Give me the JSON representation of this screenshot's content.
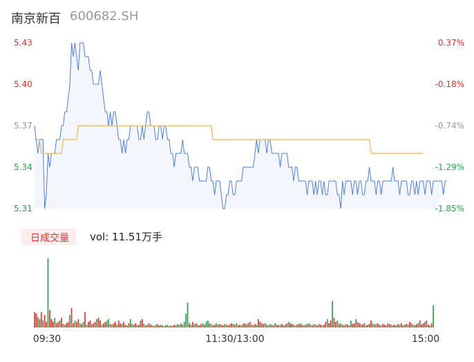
{
  "header": {
    "name": "南京新百",
    "code": "600682.SH"
  },
  "colors": {
    "up": "#e8312f",
    "down": "#1fa84a",
    "price_line": "#4a7de8",
    "avg_line": "#f0b54a",
    "neutral": "#999999"
  },
  "volume_panel": {
    "badge": "日成交量",
    "label": "vol: 11.51万手"
  },
  "chart_data": [
    {
      "type": "line",
      "title": "",
      "ylim": [
        5.31,
        5.43
      ],
      "y_ticks": [
        {
          "label": "5.43",
          "value": 5.43,
          "color": "#e8312f"
        },
        {
          "label": "5.40",
          "value": 5.4,
          "color": "#e8312f"
        },
        {
          "label": "5.37",
          "value": 5.37,
          "color": "#999999"
        },
        {
          "label": "5.34",
          "value": 5.34,
          "color": "#1fa84a"
        },
        {
          "label": "5.31",
          "value": 5.31,
          "color": "#1fa84a"
        }
      ],
      "y2_ticks": [
        {
          "label": "0.37%",
          "value": 5.43,
          "color": "#e8312f"
        },
        {
          "label": "-0.18%",
          "value": 5.4,
          "color": "#e8312f"
        },
        {
          "label": "-0.74%",
          "value": 5.37,
          "color": "#999999"
        },
        {
          "label": "-1.29%",
          "value": 5.34,
          "color": "#1fa84a"
        },
        {
          "label": "-1.85%",
          "value": 5.31,
          "color": "#1fa84a"
        }
      ],
      "x_ticks": [
        "09:30",
        "11:30/13:00",
        "15:00"
      ],
      "n_points": 240,
      "series": [
        {
          "id": "price",
          "values": [
            5.37,
            5.36,
            5.35,
            5.36,
            5.36,
            5.36,
            5.31,
            5.32,
            5.35,
            5.34,
            5.35,
            5.35,
            5.35,
            5.36,
            5.36,
            5.36,
            5.37,
            5.37,
            5.38,
            5.38,
            5.39,
            5.4,
            5.43,
            5.42,
            5.43,
            5.42,
            5.41,
            5.43,
            5.43,
            5.43,
            5.42,
            5.42,
            5.42,
            5.41,
            5.41,
            5.4,
            5.4,
            5.4,
            5.4,
            5.41,
            5.4,
            5.39,
            5.38,
            5.38,
            5.37,
            5.38,
            5.37,
            5.38,
            5.38,
            5.37,
            5.36,
            5.36,
            5.35,
            5.36,
            5.35,
            5.36,
            5.36,
            5.37,
            5.37,
            5.37,
            5.37,
            5.37,
            5.36,
            5.36,
            5.37,
            5.36,
            5.37,
            5.38,
            5.38,
            5.37,
            5.37,
            5.37,
            5.36,
            5.36,
            5.37,
            5.37,
            5.36,
            5.37,
            5.37,
            5.36,
            5.36,
            5.35,
            5.35,
            5.34,
            5.35,
            5.35,
            5.35,
            5.35,
            5.36,
            5.35,
            5.35,
            5.35,
            5.34,
            5.34,
            5.33,
            5.34,
            5.34,
            5.34,
            5.33,
            5.33,
            5.33,
            5.33,
            5.33,
            5.34,
            5.34,
            5.33,
            5.33,
            5.32,
            5.33,
            5.33,
            5.33,
            5.32,
            5.31,
            5.31,
            5.32,
            5.32,
            5.33,
            5.33,
            5.32,
            5.32,
            5.33,
            5.33,
            5.33,
            5.33,
            5.34,
            5.34,
            5.34,
            5.34,
            5.34,
            5.34,
            5.34,
            5.35,
            5.36,
            5.35,
            5.36,
            5.36,
            5.36,
            5.36,
            5.35,
            5.36,
            5.36,
            5.35,
            5.35,
            5.35,
            5.35,
            5.35,
            5.34,
            5.35,
            5.35,
            5.35,
            5.35,
            5.34,
            5.34,
            5.34,
            5.33,
            5.34,
            5.34,
            5.33,
            5.33,
            5.33,
            5.33,
            5.33,
            5.32,
            5.33,
            5.33,
            5.33,
            5.32,
            5.33,
            5.32,
            5.33,
            5.33,
            5.32,
            5.33,
            5.32,
            5.32,
            5.33,
            5.33,
            5.33,
            5.33,
            5.33,
            5.32,
            5.32,
            5.31,
            5.33,
            5.32,
            5.33,
            5.33,
            5.33,
            5.33,
            5.32,
            5.33,
            5.33,
            5.32,
            5.33,
            5.33,
            5.32,
            5.32,
            5.33,
            5.33,
            5.34,
            5.33,
            5.33,
            5.33,
            5.32,
            5.33,
            5.33,
            5.32,
            5.33,
            5.33,
            5.33,
            5.33,
            5.33,
            5.33,
            5.34,
            5.33,
            5.33,
            5.33,
            5.32,
            5.33,
            5.33,
            5.33,
            5.33,
            5.32,
            5.32,
            5.33,
            5.33,
            5.32,
            5.33,
            5.32,
            5.33,
            5.33,
            5.33,
            5.32,
            5.33,
            5.33,
            5.33,
            5.32,
            5.33,
            5.33,
            5.33,
            5.33,
            5.33,
            5.33,
            5.32,
            5.33,
            5.33
          ]
        },
        {
          "id": "average",
          "values": [
            5.36,
            5.36,
            5.36,
            5.36,
            5.35,
            5.35,
            5.35,
            5.35,
            5.35,
            5.35,
            5.35,
            5.35,
            5.35,
            5.35,
            5.35,
            5.35,
            5.35,
            5.36,
            5.36,
            5.36,
            5.36,
            5.36,
            5.36,
            5.36,
            5.36,
            5.36,
            5.37,
            5.37,
            5.37,
            5.37,
            5.37,
            5.37,
            5.37,
            5.37,
            5.37,
            5.37,
            5.37,
            5.37,
            5.37,
            5.37,
            5.37,
            5.37,
            5.37,
            5.37,
            5.37,
            5.37,
            5.37,
            5.37,
            5.37,
            5.37,
            5.37,
            5.37,
            5.37,
            5.37,
            5.37,
            5.37,
            5.37,
            5.37,
            5.37,
            5.37,
            5.37,
            5.37,
            5.37,
            5.37,
            5.37,
            5.37,
            5.37,
            5.37,
            5.37,
            5.37,
            5.37,
            5.37,
            5.37,
            5.37,
            5.37,
            5.37,
            5.37,
            5.37,
            5.37,
            5.37,
            5.37,
            5.37,
            5.37,
            5.37,
            5.37,
            5.37,
            5.37,
            5.37,
            5.37,
            5.37,
            5.37,
            5.37,
            5.37,
            5.37,
            5.37,
            5.37,
            5.37,
            5.37,
            5.37,
            5.37,
            5.37,
            5.37,
            5.37,
            5.37,
            5.37,
            5.37,
            5.36,
            5.36,
            5.36,
            5.36,
            5.36,
            5.36,
            5.36,
            5.36,
            5.36,
            5.36,
            5.36,
            5.36,
            5.36,
            5.36,
            5.36,
            5.36,
            5.36,
            5.36,
            5.36,
            5.36,
            5.36,
            5.36,
            5.36,
            5.36,
            5.36,
            5.36,
            5.36,
            5.36,
            5.36,
            5.36,
            5.36,
            5.36,
            5.36,
            5.36,
            5.36,
            5.36,
            5.36,
            5.36,
            5.36,
            5.36,
            5.36,
            5.36,
            5.36,
            5.36,
            5.36,
            5.36,
            5.36,
            5.36,
            5.36,
            5.36,
            5.36,
            5.36,
            5.36,
            5.36,
            5.36,
            5.36,
            5.36,
            5.36,
            5.36,
            5.36,
            5.36,
            5.36,
            5.36,
            5.36,
            5.36,
            5.36,
            5.36,
            5.36,
            5.36,
            5.36,
            5.36,
            5.36,
            5.36,
            5.36,
            5.36,
            5.36,
            5.36,
            5.36,
            5.36,
            5.36,
            5.36,
            5.36,
            5.36,
            5.36,
            5.36,
            5.36,
            5.36,
            5.36,
            5.36,
            5.36,
            5.36,
            5.36,
            5.36,
            5.36,
            5.35,
            5.35,
            5.35,
            5.35,
            5.35,
            5.35,
            5.35,
            5.35,
            5.35,
            5.35,
            5.35,
            5.35,
            5.35,
            5.35,
            5.35,
            5.35,
            5.35,
            5.35,
            5.35,
            5.35,
            5.35,
            5.35,
            5.35,
            5.35,
            5.35,
            5.35,
            5.35,
            5.35,
            5.35,
            5.35,
            5.35,
            5.35
          ]
        }
      ]
    },
    {
      "type": "bar",
      "title": "",
      "ylim": [
        0,
        100
      ],
      "n_points": 240,
      "values": [
        22,
        20,
        15,
        12,
        22,
        10,
        18,
        8,
        100,
        25,
        12,
        8,
        14,
        6,
        8,
        10,
        14,
        5,
        4,
        6,
        8,
        18,
        28,
        6,
        10,
        8,
        12,
        6,
        5,
        8,
        22,
        4,
        8,
        10,
        5,
        6,
        8,
        12,
        14,
        10,
        4,
        6,
        8,
        10,
        12,
        5,
        4,
        6,
        8,
        4,
        10,
        6,
        5,
        8,
        4,
        3,
        6,
        12,
        5,
        4,
        6,
        3,
        4,
        10,
        12,
        5,
        3,
        4,
        6,
        4,
        3,
        2,
        4,
        5,
        3,
        4,
        3,
        2,
        3,
        4,
        2,
        3,
        2,
        4,
        3,
        5,
        4,
        6,
        4,
        8,
        20,
        36,
        6,
        4,
        8,
        5,
        6,
        4,
        3,
        5,
        6,
        4,
        8,
        10,
        6,
        5,
        3,
        4,
        6,
        4,
        5,
        4,
        3,
        5,
        4,
        3,
        4,
        6,
        5,
        4,
        6,
        3,
        4,
        3,
        5,
        6,
        4,
        6,
        8,
        4,
        3,
        5,
        4,
        12,
        8,
        6,
        5,
        6,
        4,
        3,
        5,
        4,
        3,
        6,
        4,
        3,
        4,
        5,
        3,
        4,
        6,
        8,
        6,
        5,
        4,
        3,
        4,
        5,
        6,
        4,
        3,
        4,
        5,
        6,
        4,
        3,
        5,
        4,
        3,
        5,
        4,
        3,
        4,
        8,
        12,
        6,
        10,
        38,
        14,
        8,
        10,
        5,
        6,
        4,
        3,
        5,
        4,
        3,
        10,
        5,
        6,
        12,
        8,
        6,
        5,
        4,
        6,
        3,
        4,
        5,
        10,
        6,
        4,
        5,
        6,
        4,
        3,
        5,
        4,
        3,
        6,
        5,
        4,
        3,
        4,
        3,
        5,
        4,
        6,
        3,
        4,
        5,
        4,
        8,
        6,
        4,
        3,
        5,
        6,
        10,
        4,
        6,
        8,
        10,
        4,
        3,
        6,
        32
      ],
      "colors": [
        "u",
        "u",
        "d",
        "u",
        "u",
        "d",
        "u",
        "u",
        "d",
        "u",
        "u",
        "u",
        "d",
        "u",
        "u",
        "d",
        "u",
        "u",
        "d",
        "u",
        "u",
        "d",
        "u",
        "u",
        "d",
        "u",
        "u",
        "d",
        "u",
        "d",
        "u",
        "d",
        "u",
        "u",
        "d",
        "u",
        "u",
        "d",
        "u",
        "u",
        "d",
        "u",
        "u",
        "d",
        "d",
        "u",
        "d",
        "u",
        "u",
        "d",
        "u",
        "u",
        "d",
        "u",
        "u",
        "d",
        "u",
        "d",
        "d",
        "u",
        "u",
        "d",
        "u",
        "u",
        "u",
        "d",
        "u",
        "d",
        "u",
        "u",
        "d",
        "u",
        "d",
        "u",
        "u",
        "d",
        "u",
        "d",
        "u",
        "d",
        "u",
        "d",
        "u",
        "u",
        "d",
        "d",
        "u",
        "d",
        "u",
        "d",
        "d",
        "d",
        "u",
        "d",
        "u",
        "d",
        "u",
        "d",
        "u",
        "u",
        "d",
        "u",
        "d",
        "d",
        "u",
        "d",
        "u",
        "u",
        "d",
        "u",
        "d",
        "u",
        "u",
        "d",
        "u",
        "d",
        "u",
        "u",
        "d",
        "u",
        "d",
        "u",
        "u",
        "d",
        "u",
        "u",
        "d",
        "u",
        "u",
        "d",
        "u",
        "u",
        "d",
        "u",
        "u",
        "d",
        "u",
        "u",
        "d",
        "u",
        "d",
        "u",
        "u",
        "d",
        "u",
        "u",
        "d",
        "u",
        "u",
        "d",
        "u",
        "d",
        "u",
        "u",
        "d",
        "d",
        "u",
        "u",
        "d",
        "u",
        "u",
        "d",
        "u",
        "d",
        "u",
        "u",
        "d",
        "u",
        "d",
        "u",
        "u",
        "d",
        "u",
        "u",
        "d",
        "u",
        "u",
        "d",
        "u",
        "u",
        "d",
        "u",
        "d",
        "u",
        "u",
        "d",
        "u",
        "u",
        "d",
        "u",
        "u",
        "d",
        "u",
        "u",
        "d",
        "u",
        "u",
        "u",
        "d",
        "u",
        "u",
        "d",
        "u",
        "d",
        "u",
        "u",
        "d",
        "u",
        "u",
        "d",
        "u",
        "u",
        "d",
        "u",
        "u",
        "d",
        "u",
        "d",
        "u",
        "u",
        "d",
        "u",
        "d",
        "u",
        "u",
        "d",
        "u",
        "u",
        "d",
        "u",
        "u",
        "u",
        "d",
        "u",
        "u",
        "d",
        "u",
        "d",
        "u",
        "d",
        "u",
        "u",
        "u",
        "d",
        "d",
        "u",
        "u",
        "d"
      ]
    }
  ]
}
